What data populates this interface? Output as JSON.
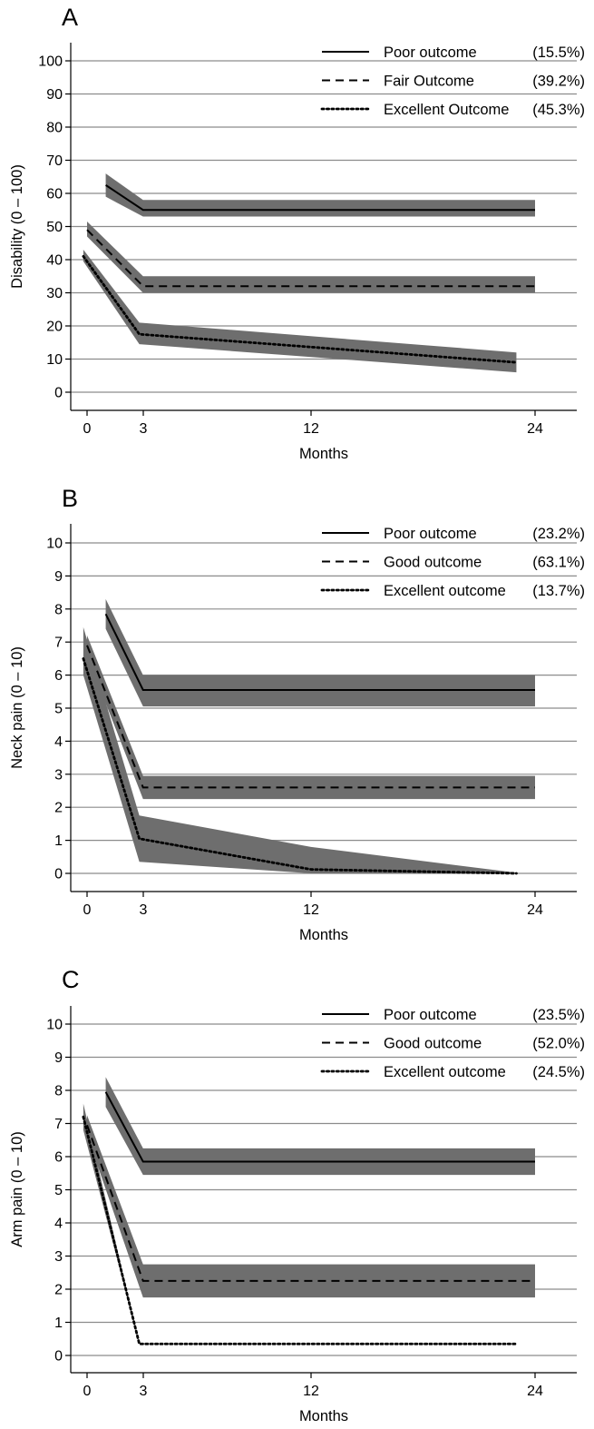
{
  "chart_data": [
    {
      "panel": "A",
      "type": "line",
      "xlabel": "Months",
      "ylabel": "Disability (0 – 100)",
      "xticks": [
        "0",
        "3",
        "12",
        "24"
      ],
      "yticks": [
        "0",
        "10",
        "20",
        "30",
        "40",
        "50",
        "60",
        "70",
        "80",
        "90",
        "100"
      ],
      "xlim": [
        -1.5,
        27
      ],
      "ylim": [
        -3,
        100
      ],
      "grid": "horizontal",
      "legend": "top-right",
      "series": [
        {
          "name": "Poor outcome",
          "pct": "(15.5%)",
          "style": "solid",
          "x": [
            1,
            3,
            24
          ],
          "y": [
            62.5,
            55,
            55
          ],
          "lower": [
            59,
            53,
            53
          ],
          "upper": [
            66,
            58,
            58
          ]
        },
        {
          "name": "Fair Outcome",
          "pct": "(39.2%)",
          "style": "dashed",
          "x": [
            0,
            3,
            24
          ],
          "y": [
            49,
            32,
            32
          ],
          "lower": [
            47,
            30,
            30
          ],
          "upper": [
            51.5,
            35,
            35
          ]
        },
        {
          "name": "Excellent Outcome",
          "pct": "(45.3%)",
          "style": "dotted",
          "x": [
            -0.2,
            2.8,
            23
          ],
          "y": [
            41,
            17.5,
            9
          ],
          "lower": [
            39.5,
            14.5,
            6
          ],
          "upper": [
            43,
            21,
            12
          ]
        }
      ]
    },
    {
      "panel": "B",
      "type": "line",
      "xlabel": "Months",
      "ylabel": "Neck pain (0 – 10)",
      "xticks": [
        "0",
        "3",
        "12",
        "24"
      ],
      "yticks": [
        "0",
        "1",
        "2",
        "3",
        "4",
        "5",
        "6",
        "7",
        "8",
        "9",
        "10"
      ],
      "xlim": [
        -1.5,
        27
      ],
      "ylim": [
        -0.3,
        10
      ],
      "grid": "horizontal",
      "legend": "top-right",
      "series": [
        {
          "name": "Poor outcome",
          "pct": "(23.2%)",
          "style": "solid",
          "x": [
            1,
            3,
            24
          ],
          "y": [
            7.85,
            5.55,
            5.55
          ],
          "lower": [
            7.4,
            5.05,
            5.05
          ],
          "upper": [
            8.3,
            6.0,
            6.0
          ]
        },
        {
          "name": "Good outcome",
          "pct": "(63.1%)",
          "style": "dashed",
          "x": [
            0,
            3,
            24
          ],
          "y": [
            6.9,
            2.6,
            2.6
          ],
          "lower": [
            6.6,
            2.25,
            2.25
          ],
          "upper": [
            7.2,
            2.95,
            2.95
          ]
        },
        {
          "name": "Excellent outcome",
          "pct": "(13.7%)",
          "style": "dotted",
          "x": [
            -0.2,
            2.8,
            12,
            23
          ],
          "y": [
            6.5,
            1.05,
            0.12,
            0.0
          ],
          "lower": [
            6.0,
            0.35,
            0.0,
            0.0
          ],
          "upper": [
            7.45,
            1.75,
            0.8,
            0.02
          ]
        }
      ]
    },
    {
      "panel": "C",
      "type": "line",
      "xlabel": "Months",
      "ylabel": "Arm pain (0 – 10)",
      "xticks": [
        "0",
        "3",
        "12",
        "24"
      ],
      "yticks": [
        "0",
        "1",
        "2",
        "3",
        "4",
        "5",
        "6",
        "7",
        "8",
        "9",
        "10"
      ],
      "xlim": [
        -1.5,
        27
      ],
      "ylim": [
        -0.3,
        10
      ],
      "grid": "horizontal",
      "legend": "top-right",
      "series": [
        {
          "name": "Poor outcome",
          "pct": "(23.5%)",
          "style": "solid",
          "x": [
            1,
            3,
            24
          ],
          "y": [
            7.95,
            5.85,
            5.85
          ],
          "lower": [
            7.5,
            5.45,
            5.45
          ],
          "upper": [
            8.4,
            6.25,
            6.25
          ]
        },
        {
          "name": "Good outcome",
          "pct": "(52.0%)",
          "style": "dashed",
          "x": [
            0,
            3,
            24
          ],
          "y": [
            6.95,
            2.25,
            2.25
          ],
          "lower": [
            6.65,
            1.75,
            1.75
          ],
          "upper": [
            7.25,
            2.75,
            2.75
          ]
        },
        {
          "name": "Excellent outcome",
          "pct": "(24.5%)",
          "style": "dotted",
          "x": [
            -0.2,
            2.8,
            23
          ],
          "y": [
            7.2,
            0.35,
            0.35
          ],
          "lower": [
            6.8,
            0.35,
            0.35
          ],
          "upper": [
            7.6,
            0.35,
            0.35
          ]
        }
      ]
    }
  ]
}
